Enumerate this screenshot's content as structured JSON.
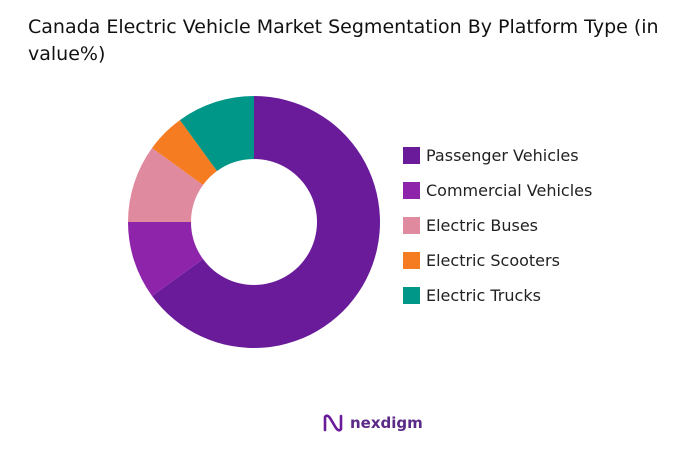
{
  "chart_data": {
    "type": "pie",
    "donut": true,
    "title": "Canada Electric Vehicle Market Segmentation By Platform Type (in value%)",
    "categories": [
      "Passenger Vehicles",
      "Commercial Vehicles",
      "Electric Buses",
      "Electric Scooters",
      "Electric Trucks"
    ],
    "values": [
      65,
      10,
      10,
      5,
      10
    ],
    "colors": [
      "#6a1b9a",
      "#8e24aa",
      "#e08aa0",
      "#f57c20",
      "#009688"
    ],
    "legend_position": "right"
  },
  "logo": {
    "text": "nexdigm"
  }
}
